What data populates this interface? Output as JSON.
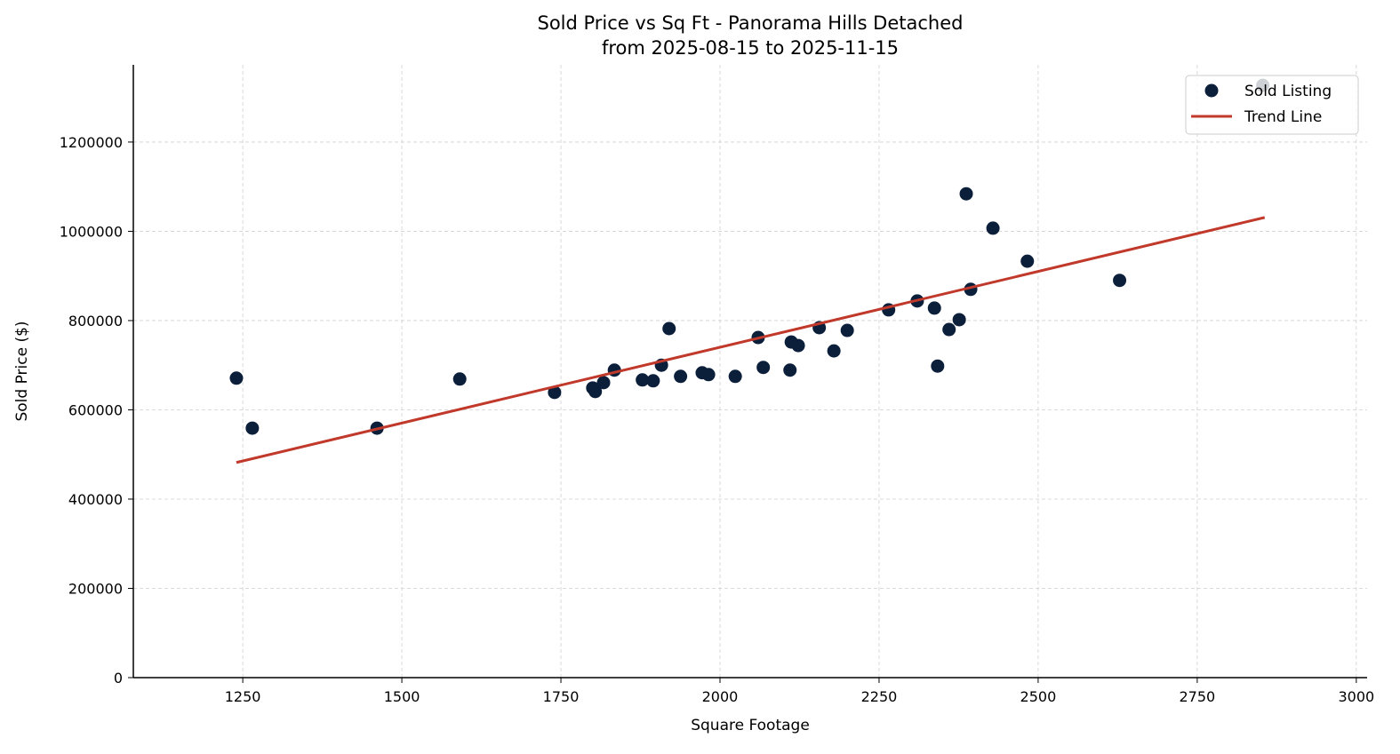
{
  "chart_data": {
    "type": "scatter",
    "title": "Sold Price vs Sq Ft - Panorama Hills Detached",
    "subtitle": "from 2025-08-15 to 2025-11-15",
    "xlabel": "Square Footage",
    "ylabel": "Sold Price ($)",
    "xlim": [
      1078,
      3017
    ],
    "ylim": [
      0,
      1373000
    ],
    "xticks": [
      1250,
      1500,
      1750,
      2000,
      2250,
      2500,
      2750,
      3000
    ],
    "yticks": [
      0,
      200000,
      400000,
      600000,
      800000,
      1000000,
      1200000
    ],
    "grid": true,
    "legend_position": "top-right",
    "legend": [
      "Sold Listing",
      "Trend Line"
    ],
    "colors": {
      "points": "#0b1f3a",
      "trend": "#c0392b"
    },
    "series": [
      {
        "name": "Sold Listing",
        "type": "scatter",
        "points": [
          [
            1240,
            671000
          ],
          [
            1265,
            559000
          ],
          [
            1461,
            559000
          ],
          [
            1591,
            669000
          ],
          [
            1740,
            639000
          ],
          [
            1800,
            649000
          ],
          [
            1804,
            641000
          ],
          [
            1817,
            661000
          ],
          [
            1834,
            689000
          ],
          [
            1878,
            667000
          ],
          [
            1895,
            665000
          ],
          [
            1908,
            700000
          ],
          [
            1920,
            782000
          ],
          [
            1938,
            675000
          ],
          [
            1972,
            683000
          ],
          [
            1982,
            679000
          ],
          [
            2024,
            675000
          ],
          [
            2060,
            762000
          ],
          [
            2068,
            695000
          ],
          [
            2110,
            689000
          ],
          [
            2112,
            752000
          ],
          [
            2123,
            744000
          ],
          [
            2156,
            784000
          ],
          [
            2179,
            732000
          ],
          [
            2200,
            778000
          ],
          [
            2265,
            824000
          ],
          [
            2310,
            844000
          ],
          [
            2337,
            828000
          ],
          [
            2342,
            698000
          ],
          [
            2360,
            780000
          ],
          [
            2376,
            802000
          ],
          [
            2387,
            1084000
          ],
          [
            2394,
            870000
          ],
          [
            2429,
            1007000
          ],
          [
            2483,
            933000
          ],
          [
            2628,
            890000
          ],
          [
            2853,
            1327000
          ]
        ]
      },
      {
        "name": "Trend Line",
        "type": "line",
        "points": [
          [
            1240,
            482000
          ],
          [
            2856,
            1031000
          ]
        ]
      }
    ]
  }
}
